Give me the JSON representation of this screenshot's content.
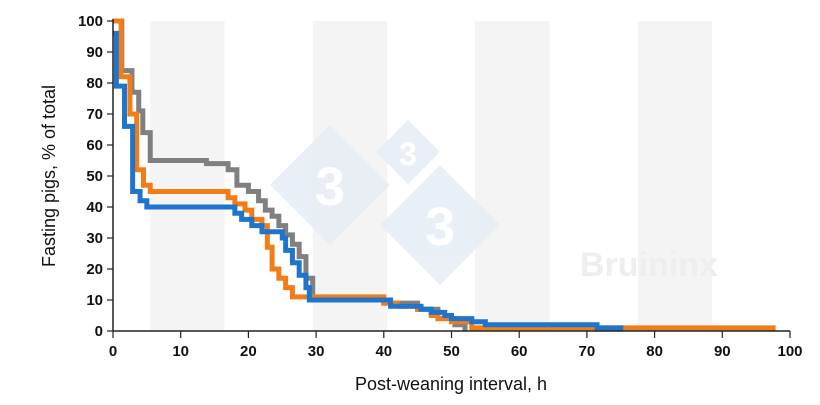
{
  "chart_data": {
    "type": "line",
    "step": true,
    "xlabel": "Post-weaning interval, h",
    "ylabel": "Fasting pigs, % of total",
    "xlim": [
      0,
      100
    ],
    "ylim": [
      0,
      100
    ],
    "xticks": [
      0,
      10,
      20,
      30,
      40,
      50,
      60,
      70,
      80,
      90,
      100
    ],
    "yticks": [
      0,
      10,
      20,
      30,
      40,
      50,
      60,
      70,
      80,
      90,
      100
    ],
    "shaded_bands": [
      [
        5.5,
        16.5
      ],
      [
        29.5,
        40.5
      ],
      [
        53.5,
        64.5
      ],
      [
        77.5,
        88.5
      ]
    ],
    "grid": false,
    "watermark": {
      "logo_digits": [
        "3",
        "3",
        "3"
      ],
      "text": "Bruininx"
    },
    "series": [
      {
        "color": "#808080",
        "points": [
          [
            0,
            100
          ],
          [
            1.3,
            84
          ],
          [
            2.8,
            77
          ],
          [
            3.8,
            71
          ],
          [
            4.4,
            64
          ],
          [
            5.5,
            55
          ],
          [
            13.8,
            54
          ],
          [
            17,
            52
          ],
          [
            18.3,
            47
          ],
          [
            20,
            45
          ],
          [
            21.5,
            42
          ],
          [
            22.5,
            39
          ],
          [
            23.5,
            37
          ],
          [
            24.5,
            34
          ],
          [
            25.5,
            31
          ],
          [
            26.5,
            28
          ],
          [
            27.5,
            24
          ],
          [
            28.5,
            17
          ],
          [
            29.5,
            10
          ],
          [
            40,
            9
          ],
          [
            45,
            7
          ],
          [
            48,
            4
          ],
          [
            50.5,
            2
          ],
          [
            52,
            0
          ]
        ]
      },
      {
        "color": "#f07d17",
        "points": [
          [
            0,
            100
          ],
          [
            1.2,
            82
          ],
          [
            2.5,
            70
          ],
          [
            3.5,
            52
          ],
          [
            4.5,
            47
          ],
          [
            5.5,
            45
          ],
          [
            17,
            43
          ],
          [
            18,
            41
          ],
          [
            19.5,
            39
          ],
          [
            20.5,
            36
          ],
          [
            22,
            34
          ],
          [
            22.8,
            27
          ],
          [
            23.5,
            20
          ],
          [
            24.5,
            17
          ],
          [
            25.5,
            14
          ],
          [
            26.5,
            11
          ],
          [
            40,
            9
          ],
          [
            42,
            8
          ],
          [
            45,
            7
          ],
          [
            47,
            5
          ],
          [
            48,
            4
          ],
          [
            50,
            3
          ],
          [
            53,
            1
          ],
          [
            97.5,
            0
          ]
        ]
      },
      {
        "color": "#1f74cc",
        "points": [
          [
            0,
            96
          ],
          [
            0.5,
            79
          ],
          [
            1.7,
            66
          ],
          [
            2.9,
            45
          ],
          [
            4,
            42
          ],
          [
            5,
            40
          ],
          [
            18,
            38
          ],
          [
            19,
            36
          ],
          [
            20.5,
            34
          ],
          [
            22,
            32
          ],
          [
            25,
            30
          ],
          [
            25.5,
            26
          ],
          [
            26.5,
            22
          ],
          [
            27.5,
            18
          ],
          [
            28.5,
            14
          ],
          [
            29,
            10
          ],
          [
            40,
            10
          ],
          [
            41,
            8
          ],
          [
            45.5,
            7
          ],
          [
            47,
            6
          ],
          [
            49,
            5
          ],
          [
            50,
            4
          ],
          [
            53,
            3
          ],
          [
            55,
            2
          ],
          [
            71.5,
            1
          ],
          [
            75,
            0
          ]
        ]
      }
    ]
  }
}
